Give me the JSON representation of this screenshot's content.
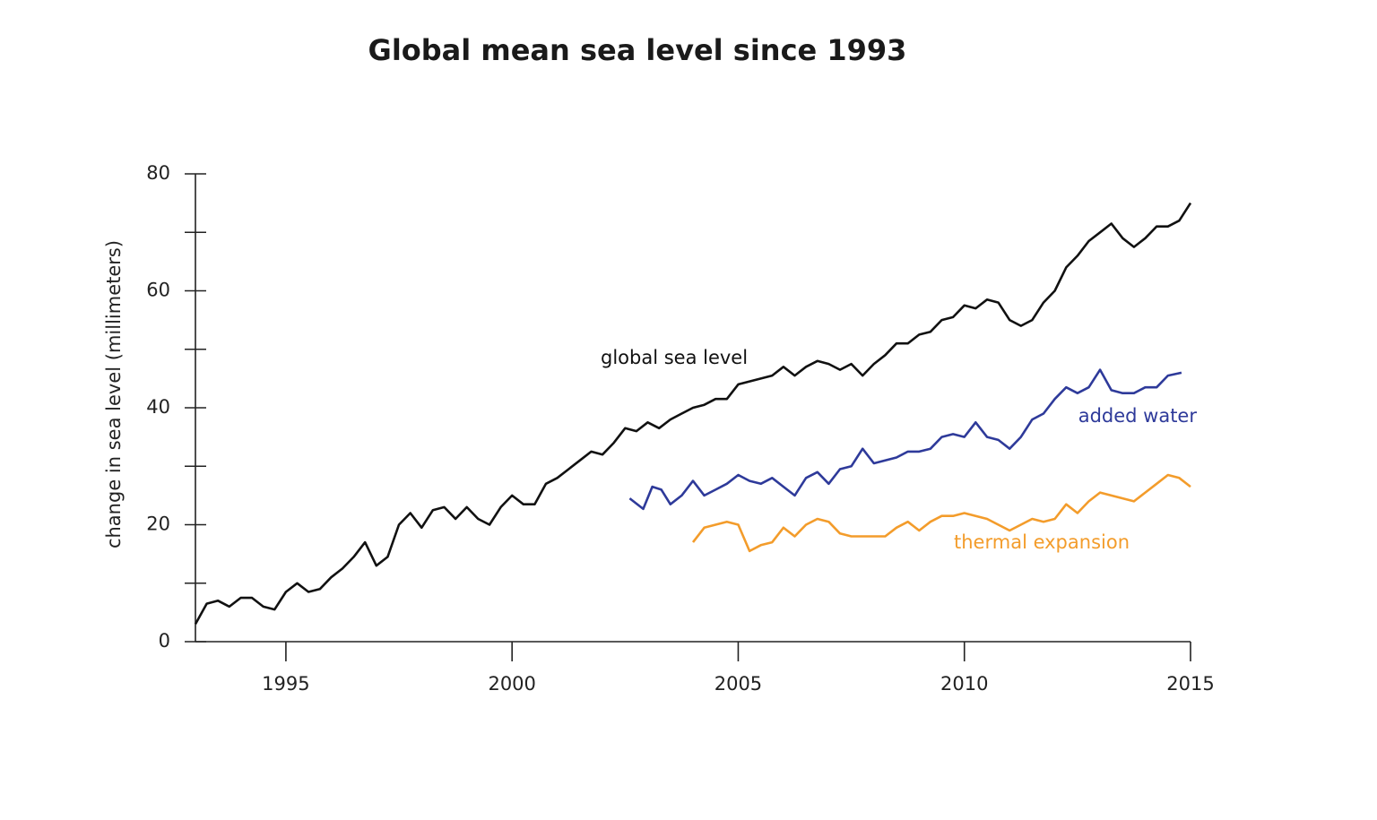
{
  "chart_data": {
    "type": "line",
    "title": "Global mean sea level since 1993",
    "y_label": "change in sea level (millimeters)",
    "xlim": [
      1993,
      2015
    ],
    "xticks": [
      1995,
      2000,
      2005,
      2010,
      2015
    ],
    "ylim": [
      0,
      80
    ],
    "yticks": [
      0,
      20,
      40,
      60,
      80
    ],
    "yticks_minor": [
      10,
      30,
      50,
      70
    ],
    "series": [
      {
        "name": "global sea level",
        "color": "#111111",
        "x": [
          1993.0,
          1993.25,
          1993.5,
          1993.75,
          1994.0,
          1994.25,
          1994.5,
          1994.75,
          1995.0,
          1995.25,
          1995.5,
          1995.75,
          1996.0,
          1996.25,
          1996.5,
          1996.75,
          1997.0,
          1997.25,
          1997.5,
          1997.75,
          1998.0,
          1998.25,
          1998.5,
          1998.75,
          1999.0,
          1999.25,
          1999.5,
          1999.75,
          2000.0,
          2000.25,
          2000.5,
          2000.75,
          2001.0,
          2001.25,
          2001.5,
          2001.75,
          2002.0,
          2002.25,
          2002.5,
          2002.75,
          2003.0,
          2003.25,
          2003.5,
          2003.75,
          2004.0,
          2004.25,
          2004.5,
          2004.75,
          2005.0,
          2005.25,
          2005.5,
          2005.75,
          2006.0,
          2006.25,
          2006.5,
          2006.75,
          2007.0,
          2007.25,
          2007.5,
          2007.75,
          2008.0,
          2008.25,
          2008.5,
          2008.75,
          2009.0,
          2009.25,
          2009.5,
          2009.75,
          2010.0,
          2010.25,
          2010.5,
          2010.75,
          2011.0,
          2011.25,
          2011.5,
          2011.75,
          2012.0,
          2012.25,
          2012.5,
          2012.75,
          2013.0,
          2013.25,
          2013.5,
          2013.75,
          2014.0,
          2014.25,
          2014.5,
          2014.75,
          2015.0
        ],
        "values": [
          3,
          6.5,
          7,
          6,
          7.5,
          7.5,
          6,
          5.5,
          8.5,
          10,
          8.5,
          9,
          11,
          12.5,
          14.5,
          17,
          13,
          14.5,
          20,
          22,
          19.5,
          22.5,
          23,
          21,
          23,
          21,
          20,
          23,
          25,
          23.5,
          23.5,
          27,
          28,
          29.5,
          31,
          32.5,
          32,
          34,
          36.5,
          36,
          37.5,
          36.5,
          38,
          39,
          40,
          40.5,
          41.5,
          41.5,
          44,
          44.5,
          45,
          45.5,
          47,
          45.5,
          47,
          48,
          47.5,
          46.5,
          47.5,
          45.5,
          47.5,
          49,
          51,
          51,
          52.5,
          53,
          55,
          55.5,
          57.5,
          57,
          58.5,
          58,
          55,
          54,
          55,
          58,
          60,
          64,
          66,
          68.5,
          70,
          71.5,
          69,
          67.5,
          69,
          71,
          71,
          72,
          75
        ]
      },
      {
        "name": "added water",
        "color": "#2e3a9a",
        "x": [
          2002.6,
          2002.9,
          2003.1,
          2003.3,
          2003.5,
          2003.75,
          2004.0,
          2004.25,
          2004.5,
          2004.75,
          2005.0,
          2005.25,
          2005.5,
          2005.75,
          2006.0,
          2006.25,
          2006.5,
          2006.75,
          2007.0,
          2007.25,
          2007.5,
          2007.75,
          2008.0,
          2008.25,
          2008.5,
          2008.75,
          2009.0,
          2009.25,
          2009.5,
          2009.75,
          2010.0,
          2010.25,
          2010.5,
          2010.75,
          2011.0,
          2011.25,
          2011.5,
          2011.75,
          2012.0,
          2012.25,
          2012.5,
          2012.75,
          2013.0,
          2013.25,
          2013.5,
          2013.75,
          2014.0,
          2014.25,
          2014.5,
          2014.8
        ],
        "values": [
          24.5,
          22.7,
          26.5,
          26,
          23.5,
          25,
          27.5,
          25,
          26,
          27,
          28.5,
          27.5,
          27,
          28,
          26.5,
          25,
          28,
          29,
          27,
          29.5,
          30,
          33,
          30.5,
          31,
          31.5,
          32.5,
          32.5,
          33,
          35,
          35.5,
          35,
          37.5,
          35,
          34.5,
          33,
          35,
          38,
          39,
          41.5,
          43.5,
          42.5,
          43.5,
          46.5,
          43,
          42.5,
          42.5,
          43.5,
          43.5,
          45.5,
          46
        ]
      },
      {
        "name": "thermal expansion",
        "color": "#f39c2b",
        "x": [
          2004.0,
          2004.25,
          2004.5,
          2004.75,
          2005.0,
          2005.25,
          2005.5,
          2005.75,
          2006.0,
          2006.25,
          2006.5,
          2006.75,
          2007.0,
          2007.25,
          2007.5,
          2007.75,
          2008.0,
          2008.25,
          2008.5,
          2008.75,
          2009.0,
          2009.25,
          2009.5,
          2009.75,
          2010.0,
          2010.25,
          2010.5,
          2010.75,
          2011.0,
          2011.25,
          2011.5,
          2011.75,
          2012.0,
          2012.25,
          2012.5,
          2012.75,
          2013.0,
          2013.25,
          2013.5,
          2013.75,
          2014.0,
          2014.25,
          2014.5,
          2014.75,
          2015.0
        ],
        "values": [
          17,
          19.5,
          20,
          20.5,
          20,
          15.5,
          16.5,
          17,
          19.5,
          18,
          20,
          21,
          20.5,
          18.5,
          18,
          18,
          18,
          18,
          19.5,
          20.5,
          19,
          20.5,
          21.5,
          21.5,
          22,
          21.5,
          21,
          20,
          19,
          20,
          21,
          20.5,
          21,
          23.5,
          22,
          24,
          25.5,
          25,
          24.5,
          24,
          25.5,
          27,
          28.5,
          28,
          26.5
        ]
      }
    ]
  }
}
